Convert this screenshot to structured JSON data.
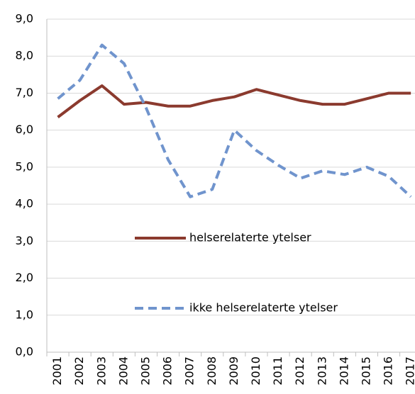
{
  "chart_data": {
    "type": "line",
    "categories": [
      "2001",
      "2002",
      "2003",
      "2004",
      "2005",
      "2006",
      "2007",
      "2008",
      "2009",
      "2010",
      "2011",
      "2012",
      "2013",
      "2014",
      "2015",
      "2016",
      "2017"
    ],
    "series": [
      {
        "name": "helserelaterte ytelser",
        "color": "#8b3a2e",
        "dash": false,
        "values": [
          6.35,
          6.8,
          7.2,
          6.7,
          6.75,
          6.65,
          6.65,
          6.8,
          6.9,
          7.1,
          6.95,
          6.8,
          6.7,
          6.7,
          6.85,
          7.0,
          7.0
        ]
      },
      {
        "name": "ikke helserelaterte ytelser",
        "color": "#7094cd",
        "dash": true,
        "values": [
          6.85,
          7.35,
          8.3,
          7.8,
          6.6,
          5.2,
          4.2,
          4.4,
          6.0,
          5.45,
          5.05,
          4.7,
          4.9,
          4.8,
          5.0,
          4.75,
          4.2
        ]
      }
    ],
    "ylim": [
      0,
      9
    ],
    "yticks": [
      {
        "value": 0,
        "label": "0,0"
      },
      {
        "value": 1,
        "label": "1,0"
      },
      {
        "value": 2,
        "label": "2,0"
      },
      {
        "value": 3,
        "label": "3,0"
      },
      {
        "value": 4,
        "label": "4,0"
      },
      {
        "value": 5,
        "label": "5,0"
      },
      {
        "value": 6,
        "label": "6,0"
      },
      {
        "value": 7,
        "label": "7,0"
      },
      {
        "value": 8,
        "label": "8,0"
      },
      {
        "value": 9,
        "label": "9,0"
      }
    ],
    "grid": true,
    "legend": "center"
  }
}
